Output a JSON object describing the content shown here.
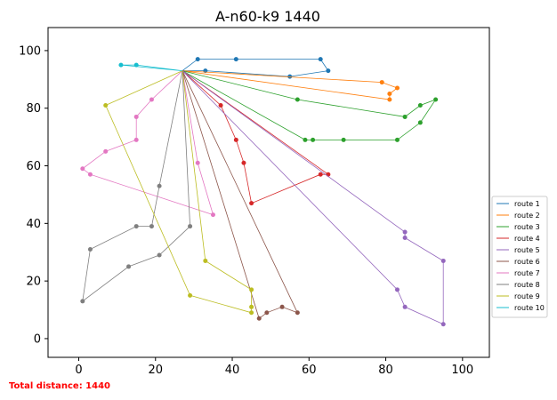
{
  "chart_data": {
    "type": "line",
    "title": "A-n60-k9 1440",
    "xlim": [
      -8,
      107
    ],
    "ylim": [
      -6.5,
      108
    ],
    "x_ticks": [
      0,
      20,
      40,
      60,
      80,
      100
    ],
    "y_ticks": [
      0,
      20,
      40,
      60,
      80,
      100
    ],
    "legend_position": "right",
    "footer": "Total distance: 1440",
    "footer_color": "#ff0000",
    "depot": [
      27,
      93
    ],
    "series": [
      {
        "name": "route 1",
        "color": "#1f77b4",
        "points": [
          [
            27,
            93
          ],
          [
            31,
            97
          ],
          [
            41,
            97
          ],
          [
            63,
            97
          ],
          [
            65,
            93
          ],
          [
            55,
            91
          ],
          [
            33,
            93
          ],
          [
            27,
            93
          ]
        ]
      },
      {
        "name": "route 2",
        "color": "#ff7f0e",
        "points": [
          [
            27,
            93
          ],
          [
            79,
            89
          ],
          [
            83,
            87
          ],
          [
            81,
            85
          ],
          [
            81,
            83
          ],
          [
            27,
            93
          ]
        ]
      },
      {
        "name": "route 3",
        "color": "#2ca02c",
        "points": [
          [
            27,
            93
          ],
          [
            57,
            83
          ],
          [
            85,
            77
          ],
          [
            89,
            81
          ],
          [
            93,
            83
          ],
          [
            89,
            75
          ],
          [
            83,
            69
          ],
          [
            69,
            69
          ],
          [
            61,
            69
          ],
          [
            59,
            69
          ],
          [
            27,
            93
          ]
        ]
      },
      {
        "name": "route 4",
        "color": "#d62728",
        "points": [
          [
            27,
            93
          ],
          [
            37,
            81
          ],
          [
            41,
            69
          ],
          [
            43,
            61
          ],
          [
            45,
            47
          ],
          [
            63,
            57
          ],
          [
            65,
            57
          ],
          [
            27,
            93
          ]
        ]
      },
      {
        "name": "route 5",
        "color": "#9467bd",
        "points": [
          [
            27,
            93
          ],
          [
            85,
            37
          ],
          [
            85,
            35
          ],
          [
            95,
            27
          ],
          [
            95,
            5
          ],
          [
            85,
            11
          ],
          [
            83,
            17
          ],
          [
            27,
            93
          ]
        ]
      },
      {
        "name": "route 6",
        "color": "#8c564b",
        "points": [
          [
            27,
            93
          ],
          [
            57,
            9
          ],
          [
            53,
            11
          ],
          [
            49,
            9
          ],
          [
            47,
            7
          ],
          [
            27,
            93
          ]
        ]
      },
      {
        "name": "route 7",
        "color": "#e377c2",
        "points": [
          [
            27,
            93
          ],
          [
            19,
            83
          ],
          [
            15,
            77
          ],
          [
            15,
            69
          ],
          [
            7,
            65
          ],
          [
            1,
            59
          ],
          [
            3,
            57
          ],
          [
            35,
            43
          ],
          [
            31,
            61
          ],
          [
            27,
            93
          ]
        ]
      },
      {
        "name": "route 8",
        "color": "#7f7f7f",
        "points": [
          [
            27,
            93
          ],
          [
            21,
            53
          ],
          [
            19,
            39
          ],
          [
            15,
            39
          ],
          [
            3,
            31
          ],
          [
            1,
            13
          ],
          [
            13,
            25
          ],
          [
            21,
            29
          ],
          [
            29,
            39
          ],
          [
            27,
            93
          ]
        ]
      },
      {
        "name": "route 9",
        "color": "#bcbd22",
        "points": [
          [
            27,
            93
          ],
          [
            7,
            81
          ],
          [
            29,
            15
          ],
          [
            45,
            9
          ],
          [
            45,
            11
          ],
          [
            45,
            17
          ],
          [
            33,
            27
          ],
          [
            27,
            93
          ]
        ]
      },
      {
        "name": "route 10",
        "color": "#17becf",
        "points": [
          [
            27,
            93
          ],
          [
            15,
            95
          ],
          [
            11,
            95
          ],
          [
            27,
            93
          ]
        ]
      }
    ]
  }
}
